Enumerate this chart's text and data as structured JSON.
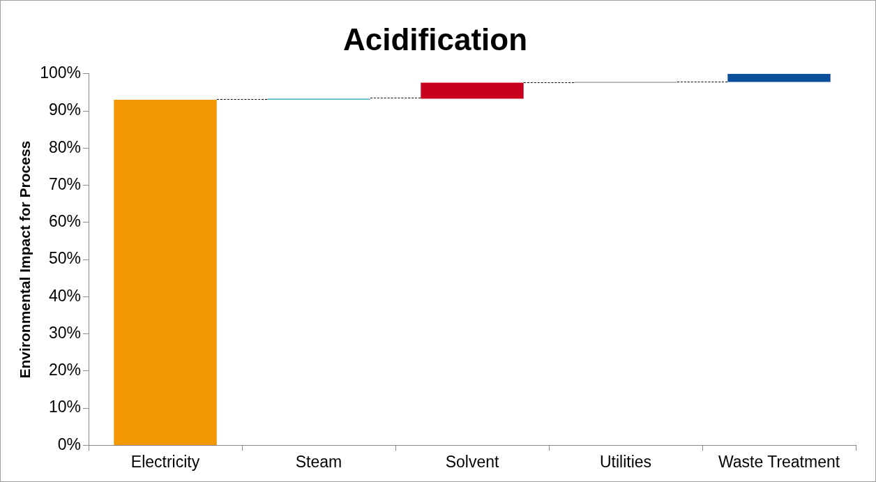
{
  "chart_data": {
    "type": "bar",
    "title": "Acidification",
    "ylabel": "Environmental Impact for Process",
    "categories": [
      "Electricity",
      "Steam",
      "Solvent",
      "Utilities",
      "Waste Treatment"
    ],
    "values": [
      93,
      0.3,
      4.3,
      0.2,
      2.2
    ],
    "base": [
      0,
      93,
      93.3,
      97.6,
      97.8
    ],
    "colors": [
      "#f39800",
      "#4bacc6",
      "#c8001e",
      "#7f7f7f",
      "#0b4f9c"
    ],
    "ylim": [
      0,
      100
    ],
    "yticks": [
      {
        "value": 0,
        "label": "0%"
      },
      {
        "value": 10,
        "label": "10%"
      },
      {
        "value": 20,
        "label": "20%"
      },
      {
        "value": 30,
        "label": "30%"
      },
      {
        "value": 40,
        "label": "40%"
      },
      {
        "value": 50,
        "label": "50%"
      },
      {
        "value": 60,
        "label": "60%"
      },
      {
        "value": 70,
        "label": "70%"
      },
      {
        "value": 80,
        "label": "80%"
      },
      {
        "value": 90,
        "label": "90%"
      },
      {
        "value": 100,
        "label": "100%"
      }
    ],
    "grid": false,
    "legend": false
  }
}
